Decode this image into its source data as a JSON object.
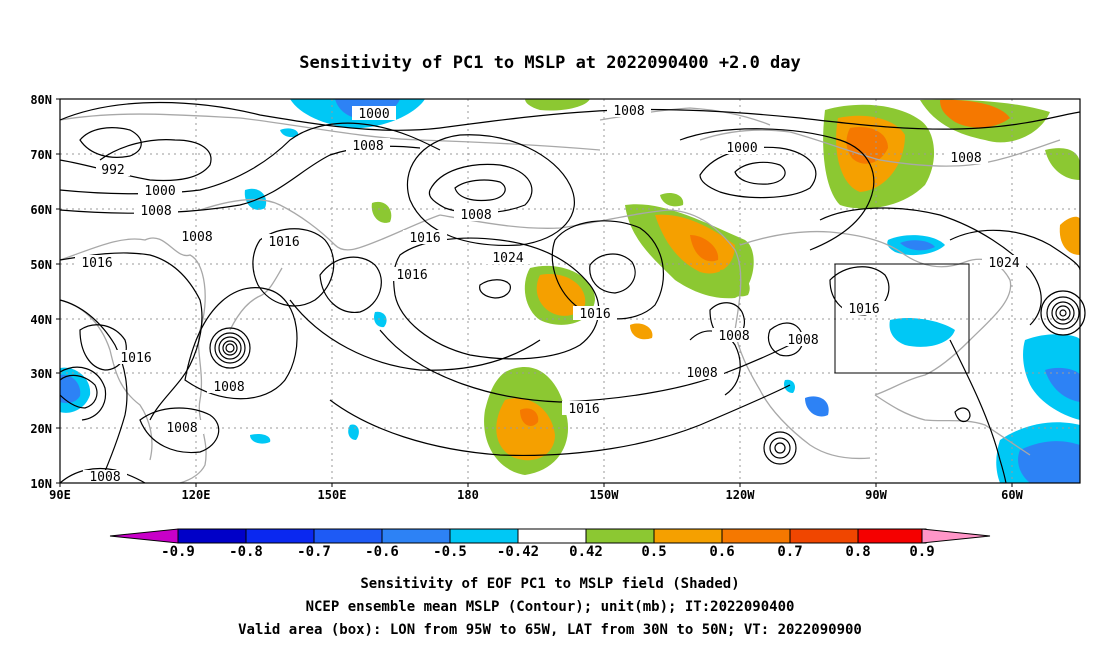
{
  "title": "Sensitivity of PC1 to MSLP at 2022090400 +2.0 day",
  "map": {
    "lon_labels": [
      "90E",
      "120E",
      "150E",
      "180",
      "150W",
      "120W",
      "90W",
      "60W"
    ],
    "lat_labels": [
      "80N",
      "70N",
      "60N",
      "50N",
      "40N",
      "30N",
      "20N",
      "10N"
    ],
    "contour_labels": [
      {
        "text": "1000"
      },
      {
        "text": "1008"
      },
      {
        "text": "992"
      },
      {
        "text": "1000"
      },
      {
        "text": "1008"
      },
      {
        "text": "1008"
      },
      {
        "text": "1016"
      },
      {
        "text": "1016"
      },
      {
        "text": "1008"
      },
      {
        "text": "1016"
      },
      {
        "text": "1024"
      },
      {
        "text": "1016"
      },
      {
        "text": "1016"
      },
      {
        "text": "1008"
      },
      {
        "text": "1000"
      },
      {
        "text": "1008"
      },
      {
        "text": "1024"
      },
      {
        "text": "1016"
      },
      {
        "text": "1008"
      },
      {
        "text": "1008"
      },
      {
        "text": "1008"
      },
      {
        "text": "1016"
      },
      {
        "text": "1008"
      },
      {
        "text": "1016"
      },
      {
        "text": "1008"
      },
      {
        "text": "1008"
      }
    ],
    "valid_box": {
      "lon_from": "95W",
      "lon_to": "65W",
      "lat_from": "30N",
      "lat_to": "50N"
    }
  },
  "colorbar": {
    "labels": [
      "-0.9",
      "-0.8",
      "-0.7",
      "-0.6",
      "-0.5",
      "-0.42",
      "0.42",
      "0.5",
      "0.6",
      "0.7",
      "0.8",
      "0.9"
    ],
    "colors": [
      "#c800c8",
      "#0000c8",
      "#0a28f0",
      "#1e5af5",
      "#2d82f5",
      "#00c8f5",
      "#ffffff",
      "#8cc832",
      "#f5a000",
      "#f57800",
      "#f04600",
      "#f50000",
      "#ff96c8"
    ]
  },
  "caption": {
    "line1": "Sensitivity of EOF PC1 to MSLP field (Shaded)",
    "line2": "NCEP ensemble mean MSLP (Contour); unit(mb); IT:2022090400",
    "line3": "Valid area (box): LON from 95W to 65W, LAT from 30N to 50N; VT: 2022090900"
  }
}
